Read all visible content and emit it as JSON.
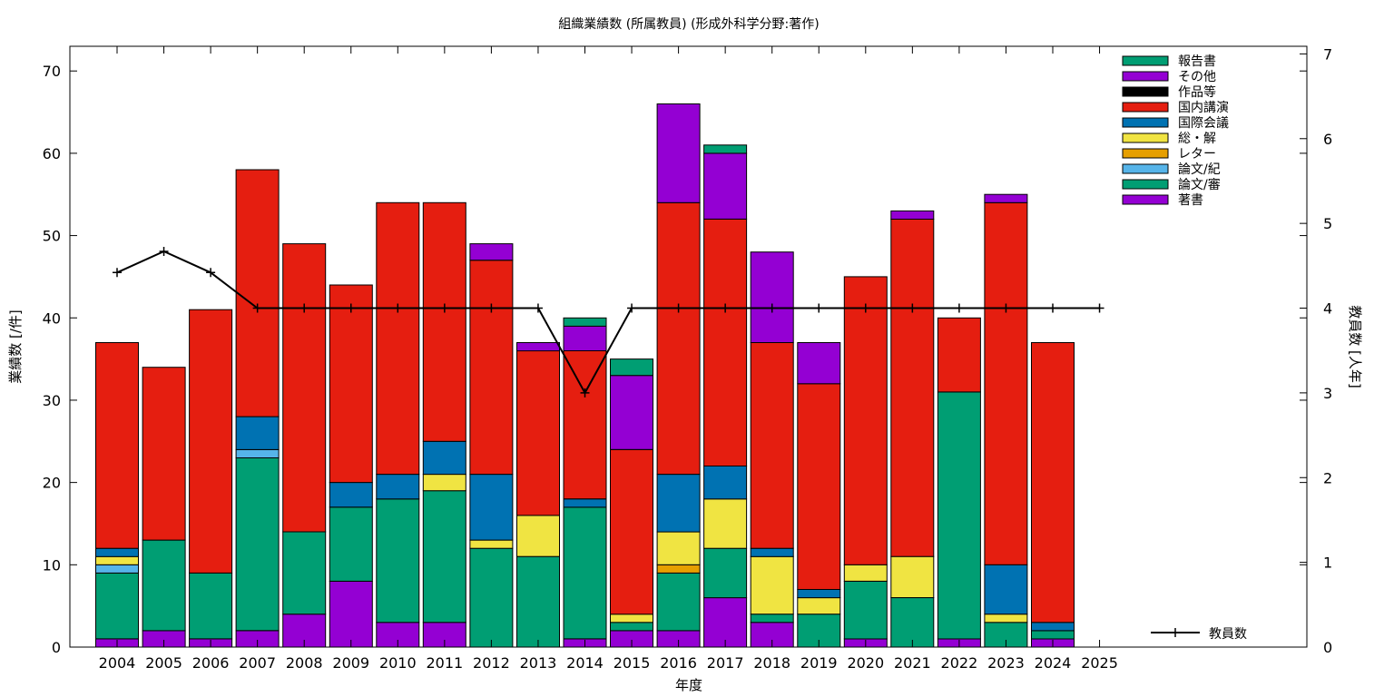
{
  "chart_data": {
    "type": "bar",
    "stacked": true,
    "title": "組織業績数 (所属教員) (形成外科学分野:著作)",
    "xlabel": "年度",
    "ylabel": "業績数 [/件]",
    "y2label": "教員数 [人年]",
    "ylim": [
      0,
      73
    ],
    "y2lim": [
      0,
      7.09
    ],
    "yticks": [
      0,
      10,
      20,
      30,
      40,
      50,
      60,
      70
    ],
    "y2ticks": [
      0,
      1,
      2,
      3,
      4,
      5,
      6,
      7
    ],
    "categories": [
      "2004",
      "2005",
      "2006",
      "2007",
      "2008",
      "2009",
      "2010",
      "2011",
      "2012",
      "2013",
      "2014",
      "2015",
      "2016",
      "2017",
      "2018",
      "2019",
      "2020",
      "2021",
      "2022",
      "2023",
      "2024",
      "2025"
    ],
    "grid": false,
    "legend_position": "top-right",
    "series": [
      {
        "name": "著書",
        "color": "#9400d3",
        "values": [
          1,
          2,
          1,
          2,
          4,
          8,
          3,
          3,
          0,
          0,
          1,
          2,
          2,
          6,
          3,
          0,
          1,
          0,
          1,
          0,
          1,
          0
        ]
      },
      {
        "name": "論文/審",
        "color": "#009e73",
        "values": [
          8,
          11,
          8,
          21,
          10,
          9,
          15,
          16,
          12,
          11,
          16,
          1,
          7,
          6,
          1,
          4,
          7,
          6,
          30,
          3,
          1,
          0
        ]
      },
      {
        "name": "論文/紀",
        "color": "#56b4e9",
        "values": [
          1,
          0,
          0,
          1,
          0,
          0,
          0,
          0,
          0,
          0,
          0,
          0,
          0,
          0,
          0,
          0,
          0,
          0,
          0,
          0,
          0,
          0
        ]
      },
      {
        "name": "レター",
        "color": "#e69f00",
        "values": [
          0,
          0,
          0,
          0,
          0,
          0,
          0,
          0,
          0,
          0,
          0,
          0,
          1,
          0,
          0,
          0,
          0,
          0,
          0,
          0,
          0,
          0
        ]
      },
      {
        "name": "総・解",
        "color": "#f0e442",
        "values": [
          1,
          0,
          0,
          0,
          0,
          0,
          0,
          2,
          1,
          5,
          0,
          1,
          4,
          6,
          7,
          2,
          2,
          5,
          0,
          1,
          0,
          0
        ]
      },
      {
        "name": "国際会議",
        "color": "#0072b2",
        "values": [
          1,
          0,
          0,
          4,
          0,
          3,
          3,
          4,
          8,
          0,
          1,
          0,
          7,
          4,
          1,
          1,
          0,
          0,
          0,
          6,
          1,
          0
        ]
      },
      {
        "name": "国内講演",
        "color": "#e51e10",
        "values": [
          25,
          21,
          32,
          30,
          35,
          24,
          33,
          29,
          26,
          20,
          18,
          20,
          33,
          30,
          25,
          25,
          35,
          41,
          9,
          44,
          34,
          0
        ]
      },
      {
        "name": "作品等",
        "color": "#000000",
        "values": [
          0,
          0,
          0,
          0,
          0,
          0,
          0,
          0,
          0,
          0,
          0,
          0,
          0,
          0,
          0,
          0,
          0,
          0,
          0,
          0,
          0,
          0
        ]
      },
      {
        "name": "その他",
        "color": "#9400d3",
        "values": [
          0,
          0,
          0,
          0,
          0,
          0,
          0,
          0,
          2,
          1,
          3,
          9,
          12,
          8,
          11,
          5,
          0,
          1,
          0,
          1,
          0,
          0
        ]
      },
      {
        "name": "報告書",
        "color": "#009e73",
        "values": [
          0,
          0,
          0,
          0,
          0,
          0,
          0,
          0,
          0,
          0,
          1,
          2,
          0,
          1,
          0,
          0,
          0,
          0,
          0,
          0,
          0,
          0
        ]
      }
    ],
    "line": {
      "name": "教員数",
      "axis": "y2",
      "color": "#000000",
      "values": [
        4.42,
        4.67,
        4.42,
        4,
        4,
        4,
        4,
        4,
        4,
        4,
        3,
        4,
        4,
        4,
        4,
        4,
        4,
        4,
        4,
        4,
        4,
        4
      ]
    }
  }
}
